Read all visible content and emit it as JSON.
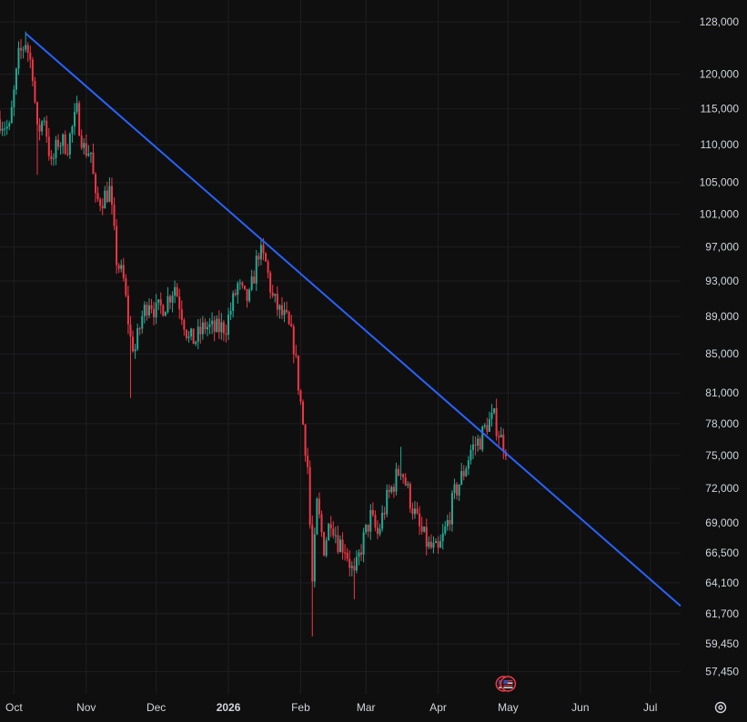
{
  "colors": {
    "background": "#0f0f0f",
    "grid": "#1f1f22",
    "up": "#22ab94",
    "down": "#f23645",
    "trendline": "#2962ff",
    "text": "#d1d4dc"
  },
  "icons": {
    "event_markers": "us-flag-icon",
    "settings": "gear-icon"
  },
  "chart_data": {
    "type": "candlestick",
    "y_axis": {
      "scale": "log",
      "ticks": [
        "128,000",
        "120,000",
        "115,000",
        "110,000",
        "105,000",
        "101,000",
        "97,000",
        "93,000",
        "89,000",
        "85,000",
        "81,000",
        "78,000",
        "75,000",
        "72,000",
        "69,000",
        "66,500",
        "64,100",
        "61,700",
        "59,450",
        "57,450"
      ],
      "tick_values": [
        128000,
        120000,
        115000,
        110000,
        105000,
        101000,
        97000,
        93000,
        89000,
        85000,
        81000,
        78000,
        75000,
        72000,
        69000,
        66500,
        64100,
        61700,
        59450,
        57450
      ],
      "range": [
        55900,
        131500
      ]
    },
    "x_axis": {
      "ticks": [
        {
          "label": "Oct",
          "date": "2025-10-01"
        },
        {
          "label": "Nov",
          "date": "2025-11-01"
        },
        {
          "label": "Dec",
          "date": "2025-12-01"
        },
        {
          "label": "2026",
          "date": "2026-01-01",
          "bold": true
        },
        {
          "label": "Feb",
          "date": "2026-02-01"
        },
        {
          "label": "Mar",
          "date": "2026-03-01"
        },
        {
          "label": "Apr",
          "date": "2026-04-01"
        },
        {
          "label": "May",
          "date": "2026-05-01"
        },
        {
          "label": "Jun",
          "date": "2026-06-01"
        },
        {
          "label": "Jul",
          "date": "2026-07-01"
        }
      ],
      "range": [
        "2025-09-25",
        "2026-07-14"
      ]
    },
    "grid": true,
    "price_path": [
      [
        "2025-09-25",
        113500
      ],
      [
        "2025-09-29",
        112000
      ],
      [
        "2025-10-03",
        122500
      ],
      [
        "2025-10-06",
        125000
      ],
      [
        "2025-10-09",
        120500
      ],
      [
        "2025-10-11",
        111500
      ],
      [
        "2025-10-14",
        114000
      ],
      [
        "2025-10-17",
        107000
      ],
      [
        "2025-10-20",
        110500
      ],
      [
        "2025-10-24",
        110000
      ],
      [
        "2025-10-28",
        114500
      ],
      [
        "2025-10-31",
        109500
      ],
      [
        "2025-11-03",
        109000
      ],
      [
        "2025-11-05",
        102500
      ],
      [
        "2025-11-08",
        103000
      ],
      [
        "2025-11-11",
        104000
      ],
      [
        "2025-11-14",
        95500
      ],
      [
        "2025-11-17",
        93000
      ],
      [
        "2025-11-20",
        86500
      ],
      [
        "2025-11-22",
        85500
      ],
      [
        "2025-11-25",
        89000
      ],
      [
        "2025-11-28",
        91000
      ],
      [
        "2025-12-01",
        89500
      ],
      [
        "2025-12-05",
        90500
      ],
      [
        "2025-12-09",
        92500
      ],
      [
        "2025-12-12",
        89500
      ],
      [
        "2025-12-15",
        86500
      ],
      [
        "2025-12-18",
        86500
      ],
      [
        "2025-12-22",
        88000
      ],
      [
        "2025-12-26",
        87500
      ],
      [
        "2025-12-31",
        88000
      ],
      [
        "2026-01-05",
        92500
      ],
      [
        "2026-01-08",
        91000
      ],
      [
        "2026-01-10",
        91000
      ],
      [
        "2026-01-14",
        96500
      ],
      [
        "2026-01-17",
        95000
      ],
      [
        "2026-01-20",
        91000
      ],
      [
        "2026-01-23",
        89500
      ],
      [
        "2026-01-26",
        88500
      ],
      [
        "2026-01-29",
        86000
      ],
      [
        "2026-02-01",
        80000
      ],
      [
        "2026-02-04",
        74000
      ],
      [
        "2026-02-06",
        64000
      ],
      [
        "2026-02-08",
        70500
      ],
      [
        "2026-02-11",
        67000
      ],
      [
        "2026-02-14",
        69500
      ],
      [
        "2026-02-17",
        67500
      ],
      [
        "2026-02-20",
        67000
      ],
      [
        "2026-02-24",
        64500
      ],
      [
        "2026-02-27",
        67000
      ],
      [
        "2026-03-03",
        69500
      ],
      [
        "2026-03-06",
        68000
      ],
      [
        "2026-03-10",
        71000
      ],
      [
        "2026-03-13",
        72500
      ],
      [
        "2026-03-16",
        74000
      ],
      [
        "2026-03-20",
        71000
      ],
      [
        "2026-03-24",
        68500
      ],
      [
        "2026-03-28",
        67000
      ],
      [
        "2026-04-01",
        66500
      ],
      [
        "2026-04-05",
        69000
      ],
      [
        "2026-04-08",
        71500
      ],
      [
        "2026-04-12",
        73500
      ],
      [
        "2026-04-15",
        75500
      ],
      [
        "2026-04-19",
        76500
      ],
      [
        "2026-04-22",
        78000
      ],
      [
        "2026-04-25",
        78500
      ],
      [
        "2026-04-28",
        76500
      ],
      [
        "2026-04-30",
        75800
      ]
    ],
    "spikes": [
      {
        "date": "2025-10-06",
        "high": 126500
      },
      {
        "date": "2025-10-11",
        "low": 106000
      },
      {
        "date": "2025-11-20",
        "low": 80500
      },
      {
        "date": "2026-02-06",
        "low": 60000
      },
      {
        "date": "2026-02-24",
        "low": 62800
      },
      {
        "date": "2026-03-16",
        "high": 75800
      },
      {
        "date": "2026-04-25",
        "high": 79500
      }
    ],
    "trendline": {
      "start": [
        "2025-10-06",
        126200
      ],
      "end": [
        "2026-07-14",
        62300
      ]
    },
    "event_markers": [
      {
        "date": "2026-04-29",
        "kind": "us-flag"
      },
      {
        "date": "2026-05-01",
        "kind": "us-flag"
      }
    ]
  }
}
